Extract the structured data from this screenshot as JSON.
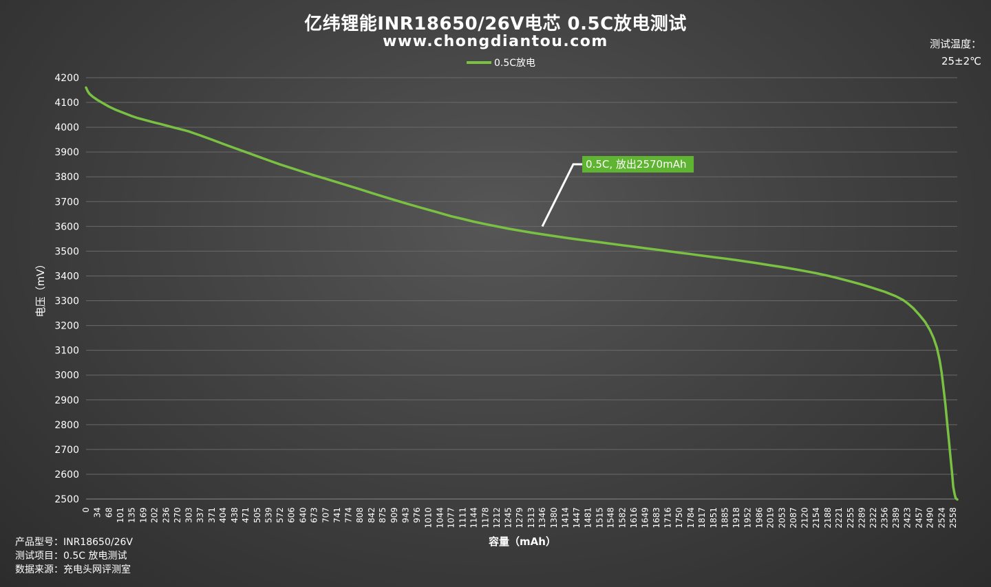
{
  "title": "亿纬锂能INR18650/26V电芯 0.5C放电测试",
  "subtitle": "www.chongdiantou.com",
  "temperature": {
    "label": "测试温度：",
    "value": "25±2℃"
  },
  "info": [
    {
      "label": "产品型号：",
      "value": "INR18650/26V"
    },
    {
      "label": "测试项目：",
      "value": "0.5C 放电测试"
    },
    {
      "label": "数据来源：",
      "value": "充电头网评测室"
    }
  ],
  "colors": {
    "series": "#7ac143",
    "annotation_bg": "#5fb531",
    "grid": "#6a6a6a"
  },
  "chart_data": {
    "type": "line",
    "title": "亿纬锂能INR18650/26V电芯 0.5C放电测试",
    "xlabel": "容量（mAh）",
    "ylabel": "电压（mV）",
    "ylim": [
      2500,
      4200
    ],
    "yticks": [
      2500,
      2600,
      2700,
      2800,
      2900,
      3000,
      3100,
      3200,
      3300,
      3400,
      3500,
      3600,
      3700,
      3800,
      3900,
      4000,
      4100,
      4200
    ],
    "xticks": [
      "0",
      "34",
      "68",
      "101",
      "135",
      "169",
      "202",
      "236",
      "270",
      "303",
      "337",
      "371",
      "404",
      "438",
      "471",
      "505",
      "539",
      "572",
      "606",
      "640",
      "673",
      "707",
      "741",
      "774",
      "808",
      "842",
      "875",
      "909",
      "943",
      "976",
      "1010",
      "1044",
      "1077",
      "1111",
      "1144",
      "1178",
      "1212",
      "1245",
      "1279",
      "1313",
      "1346",
      "1380",
      "1414",
      "1447",
      "1481",
      "1515",
      "1548",
      "1582",
      "1616",
      "1649",
      "1683",
      "1716",
      "1750",
      "1784",
      "1817",
      "1851",
      "1885",
      "1918",
      "1952",
      "1986",
      "2019",
      "2053",
      "2087",
      "2120",
      "2154",
      "2188",
      "2221",
      "2255",
      "2289",
      "2322",
      "2356",
      "2389",
      "2423",
      "2457",
      "2490",
      "2524",
      "2558"
    ],
    "xlim": [
      0,
      2570
    ],
    "grid": true,
    "legend_position": "top-center",
    "series": [
      {
        "name": "0.5C放电",
        "color": "#7ac143",
        "x": [
          0,
          5,
          10,
          20,
          34,
          50,
          68,
          85,
          101,
          120,
          135,
          150,
          169,
          185,
          202,
          220,
          236,
          255,
          270,
          290,
          303,
          320,
          337,
          371,
          404,
          438,
          471,
          505,
          539,
          572,
          606,
          640,
          673,
          707,
          741,
          774,
          808,
          842,
          875,
          909,
          943,
          976,
          1010,
          1044,
          1077,
          1111,
          1144,
          1178,
          1212,
          1245,
          1279,
          1313,
          1346,
          1380,
          1414,
          1447,
          1481,
          1515,
          1548,
          1582,
          1616,
          1649,
          1683,
          1716,
          1750,
          1784,
          1817,
          1851,
          1885,
          1918,
          1952,
          1986,
          2019,
          2053,
          2087,
          2120,
          2154,
          2188,
          2221,
          2255,
          2289,
          2322,
          2356,
          2389,
          2410,
          2423,
          2440,
          2457,
          2475,
          2490,
          2500,
          2510,
          2518,
          2524,
          2530,
          2535,
          2540,
          2545,
          2550,
          2555,
          2558,
          2562,
          2565,
          2568,
          2570
        ],
        "y": [
          4160,
          4145,
          4135,
          4123,
          4110,
          4097,
          4083,
          4072,
          4063,
          4053,
          4045,
          4038,
          4031,
          4025,
          4019,
          4013,
          4007,
          4000,
          3995,
          3988,
          3983,
          3975,
          3967,
          3950,
          3933,
          3916,
          3900,
          3883,
          3866,
          3850,
          3835,
          3820,
          3806,
          3792,
          3778,
          3764,
          3750,
          3735,
          3721,
          3707,
          3693,
          3680,
          3667,
          3654,
          3641,
          3630,
          3619,
          3609,
          3600,
          3591,
          3583,
          3575,
          3568,
          3561,
          3554,
          3548,
          3542,
          3536,
          3530,
          3524,
          3518,
          3512,
          3506,
          3500,
          3494,
          3488,
          3482,
          3476,
          3470,
          3464,
          3457,
          3450,
          3443,
          3436,
          3428,
          3420,
          3411,
          3401,
          3390,
          3378,
          3365,
          3351,
          3336,
          3318,
          3303,
          3290,
          3270,
          3245,
          3215,
          3180,
          3150,
          3110,
          3060,
          3010,
          2940,
          2880,
          2810,
          2740,
          2670,
          2600,
          2550,
          2520,
          2505,
          2500,
          2498
        ]
      }
    ],
    "annotations": [
      {
        "text": "0.5C, 放出2570mAh",
        "x": 1346,
        "y": 3600
      }
    ]
  }
}
